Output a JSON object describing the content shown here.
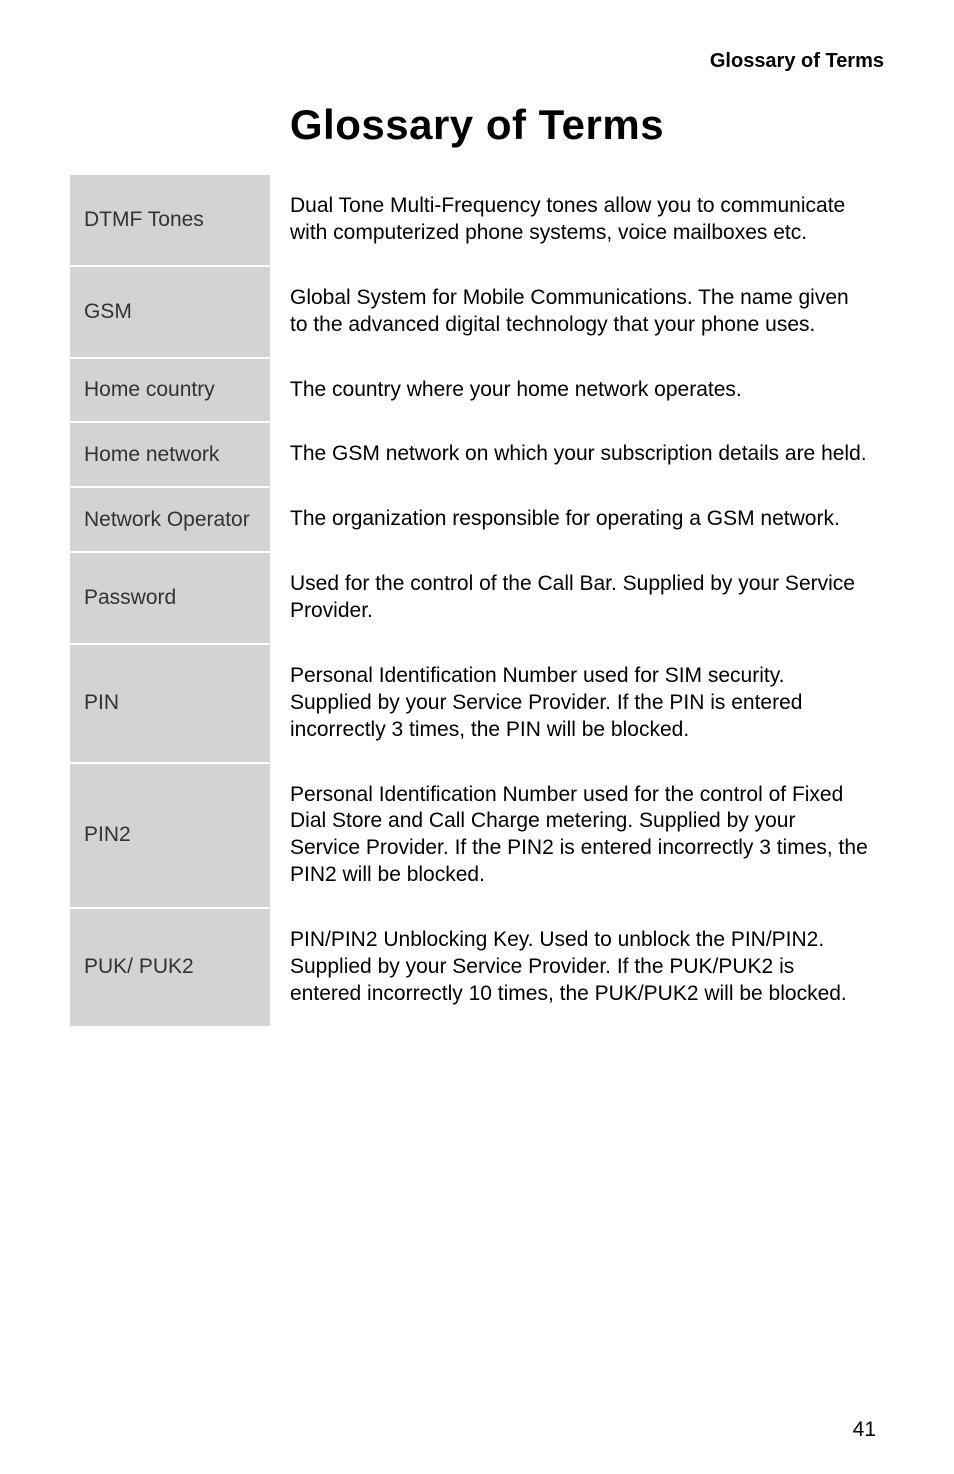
{
  "running_header": "Glossary of Terms",
  "page_title": "Glossary of Terms",
  "page_number": "41",
  "table": {
    "columns": [
      "term",
      "definition"
    ],
    "term_col_bg": "#d3d3d3",
    "definition_col_bg": "#ffffff",
    "row_divider_color": "#bfbfbf",
    "term_font_size_pt": 16,
    "definition_font_size_pt": 16,
    "rows": [
      {
        "term": "DTMF Tones",
        "definition": "Dual Tone Multi-Frequency tones allow you to communicate with computerized phone systems, voice mailboxes etc."
      },
      {
        "term": "GSM",
        "definition": "Global System for Mobile Communications. The name given to the advanced digital technology that your phone uses."
      },
      {
        "term": "Home country",
        "definition": "The country where your home network operates."
      },
      {
        "term": "Home network",
        "definition": "The GSM network on which your subscription details are held."
      },
      {
        "term": "Network Operator",
        "definition": "The organization responsible for operating a GSM network."
      },
      {
        "term": "Password",
        "definition": "Used for the control of the Call Bar. Supplied by your Service Provider."
      },
      {
        "term": "PIN",
        "definition": "Personal Identification Number used for SIM security. Supplied by your Service Provider. If the PIN is entered incorrectly 3 times, the PIN will be blocked."
      },
      {
        "term": "PIN2",
        "definition": "Personal Identification Number used for the control of Fixed Dial Store and Call Charge metering. Supplied by your Service Provider. If the PIN2 is entered incorrectly 3 times, the PIN2 will be blocked."
      },
      {
        "term": "PUK/ PUK2",
        "definition": "PIN/PIN2 Unblocking Key. Used to unblock the PIN/PIN2. Supplied by your Service Provider. If the PUK/PUK2 is entered incorrectly 10 times, the PUK/PUK2 will be blocked."
      }
    ]
  },
  "colors": {
    "page_bg": "#ffffff",
    "text": "#000000",
    "term_text": "#333333"
  },
  "typography": {
    "font_family": "Arial, Helvetica, sans-serif",
    "title_font_size_pt": 32,
    "title_font_weight": 900,
    "header_font_size_pt": 15,
    "header_font_weight": "bold"
  }
}
